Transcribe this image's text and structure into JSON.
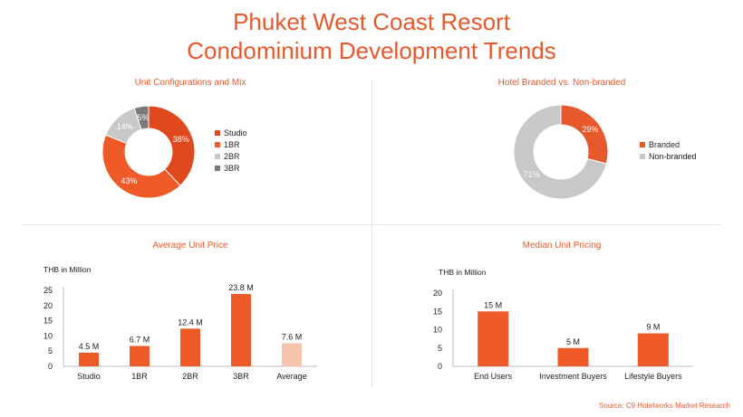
{
  "header": {
    "title_line1": "Phuket West Coast Resort",
    "title_line2": "Condominium Development Trends"
  },
  "source": "Source: C9 Hotelworks Market Research",
  "colors": {
    "accent": "#e8582d",
    "dark_orange": "#e0481e",
    "orange": "#f05a28",
    "light_gray": "#c8c8c8",
    "dark_gray": "#7a7a7a",
    "peach": "#f7c5ad"
  },
  "chart_data": [
    {
      "id": "unit_mix",
      "type": "pie",
      "title": "Unit Configurations and Mix",
      "categories": [
        "Studio",
        "1BR",
        "2BR",
        "3BR"
      ],
      "values": [
        38,
        43,
        14,
        5
      ],
      "labels": [
        "38%",
        "43%",
        "14%",
        "5%"
      ],
      "colors": [
        "#e0481e",
        "#f05a28",
        "#c8c8c8",
        "#7a7a7a"
      ],
      "donut": true,
      "legend": "right"
    },
    {
      "id": "branded",
      "type": "pie",
      "title": "Hotel Branded vs. Non-branded",
      "categories": [
        "Branded",
        "Non-branded"
      ],
      "values": [
        29,
        71
      ],
      "labels": [
        "29%",
        "71%"
      ],
      "colors": [
        "#e8582d",
        "#c8c8c8"
      ],
      "donut": true,
      "legend": "right"
    },
    {
      "id": "avg_price",
      "type": "bar",
      "title": "Average Unit Price",
      "ylabel": "THB in Million",
      "categories": [
        "Studio",
        "1BR",
        "2BR",
        "3BR",
        "Average"
      ],
      "values": [
        4.5,
        6.7,
        12.4,
        23.8,
        7.6
      ],
      "data_labels": [
        "4.5 M",
        "6.7 M",
        "12.4 M",
        "23.8 M",
        "7.6 M"
      ],
      "colors": [
        "#f05a28",
        "#f05a28",
        "#f05a28",
        "#f05a28",
        "#f7c5ad"
      ],
      "ylim": [
        0,
        25
      ],
      "yticks": [
        0,
        5,
        10,
        15,
        20,
        25
      ],
      "grid": false
    },
    {
      "id": "median_price",
      "type": "bar",
      "title": "Median Unit Pricing",
      "ylabel": "THB in Million",
      "categories": [
        "End Users",
        "Investment Buyers",
        "Lifestyle Buyers"
      ],
      "values": [
        15,
        5,
        9
      ],
      "data_labels": [
        "15 M",
        "5 M",
        "9 M"
      ],
      "colors": [
        "#f05a28",
        "#f05a28",
        "#f05a28"
      ],
      "ylim": [
        0,
        20
      ],
      "yticks": [
        0,
        5,
        10,
        15,
        20
      ],
      "grid": false
    }
  ]
}
